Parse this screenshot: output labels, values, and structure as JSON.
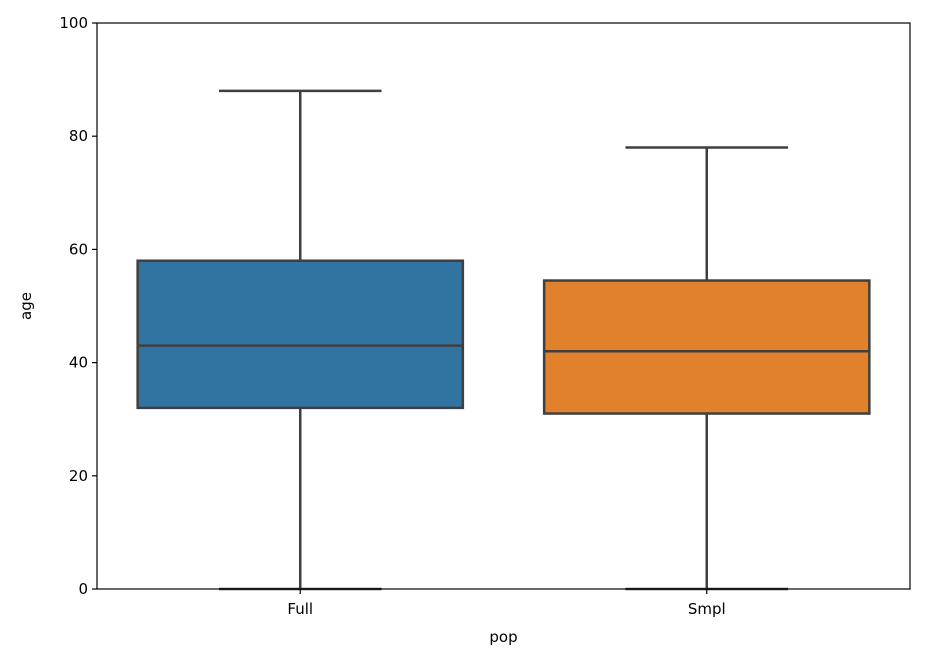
{
  "chart_data": {
    "type": "box",
    "xlabel": "pop",
    "ylabel": "age",
    "ylim": [
      0,
      100
    ],
    "yticks": [
      0,
      20,
      40,
      60,
      80,
      100
    ],
    "grid": false,
    "categories": [
      "Full",
      "Smpl"
    ],
    "boxes": [
      {
        "category": "Full",
        "min": 0,
        "q1": 32,
        "median": 43,
        "q3": 58,
        "max": 88,
        "color": "#3274a1"
      },
      {
        "category": "Smpl",
        "min": 0,
        "q1": 31,
        "median": 42,
        "q3": 54.5,
        "max": 78,
        "color": "#e1812c"
      }
    ],
    "line_color": "#3f3f3f"
  }
}
